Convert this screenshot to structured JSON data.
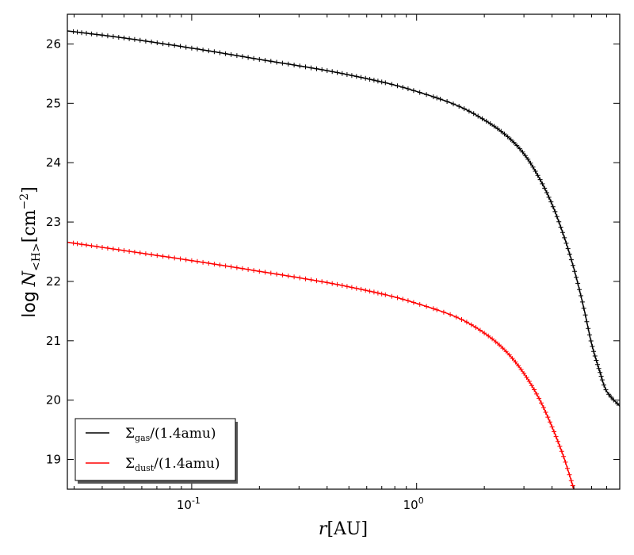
{
  "chart_data": {
    "type": "line",
    "xscale": "log",
    "xlim": [
      0.028,
      8.0
    ],
    "ylim": [
      18.5,
      26.5
    ],
    "xlabel": "r[AU]",
    "ylabel": "log N<H>[cm^-2]",
    "x_ticks": [
      {
        "value": 0.1,
        "label": "10",
        "exp": "-1"
      },
      {
        "value": 1.0,
        "label": "10",
        "exp": "0"
      }
    ],
    "y_ticks": [
      19,
      20,
      21,
      22,
      23,
      24,
      25,
      26
    ],
    "grid": false,
    "legend_position": "lower-left",
    "series": [
      {
        "name": "Σgas/(1.4amu)",
        "color": "#000000",
        "marker": "+",
        "points": [
          [
            0.028,
            26.22
          ],
          [
            0.05,
            26.1
          ],
          [
            0.1,
            25.93
          ],
          [
            0.2,
            25.74
          ],
          [
            0.4,
            25.55
          ],
          [
            0.7,
            25.36
          ],
          [
            1.0,
            25.2
          ],
          [
            1.5,
            24.97
          ],
          [
            2.0,
            24.72
          ],
          [
            2.5,
            24.46
          ],
          [
            3.0,
            24.15
          ],
          [
            3.5,
            23.75
          ],
          [
            4.0,
            23.3
          ],
          [
            4.5,
            22.78
          ],
          [
            5.0,
            22.22
          ],
          [
            5.5,
            21.6
          ],
          [
            6.0,
            20.95
          ],
          [
            6.5,
            20.5
          ],
          [
            7.0,
            20.15
          ],
          [
            8.0,
            19.9
          ]
        ]
      },
      {
        "name": "Σdust/(1.4amu)",
        "color": "#ff0000",
        "marker": "+",
        "points": [
          [
            0.028,
            22.66
          ],
          [
            0.05,
            22.52
          ],
          [
            0.1,
            22.35
          ],
          [
            0.2,
            22.17
          ],
          [
            0.4,
            21.98
          ],
          [
            0.7,
            21.79
          ],
          [
            1.0,
            21.63
          ],
          [
            1.5,
            21.4
          ],
          [
            2.0,
            21.13
          ],
          [
            2.5,
            20.82
          ],
          [
            3.0,
            20.45
          ],
          [
            3.5,
            20.03
          ],
          [
            4.0,
            19.55
          ],
          [
            4.5,
            19.05
          ],
          [
            5.0,
            18.5
          ]
        ]
      }
    ]
  },
  "legend": {
    "gas_main": "Σ",
    "gas_sub": "gas",
    "gas_tail": "/(1.4amu)",
    "dust_main": "Σ",
    "dust_sub": "dust",
    "dust_tail": "/(1.4amu)"
  },
  "axes": {
    "xlabel_italic": "r",
    "xlabel_unit": "[AU]",
    "ylabel_log": "log",
    "ylabel_N": "N",
    "ylabel_sub": "<H>",
    "ylabel_unit": "[cm",
    "ylabel_exp": "−2",
    "ylabel_close": "]"
  }
}
